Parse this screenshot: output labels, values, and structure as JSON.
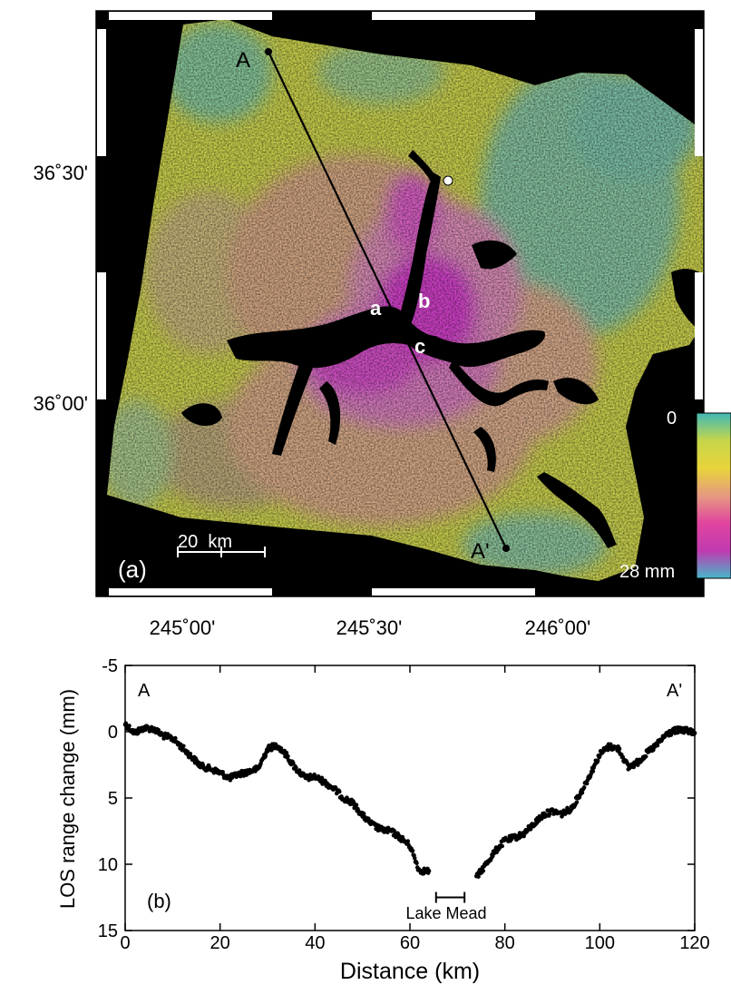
{
  "map": {
    "panel_label": "(a)",
    "lat_ticks": [
      "36˚30'",
      "36˚00'"
    ],
    "lon_ticks": [
      "245˚00'",
      "245˚30'",
      "246˚00'"
    ],
    "profile_start_label": "A",
    "profile_end_label": "A'",
    "site_labels": [
      "a",
      "b",
      "c"
    ],
    "scale_bar_label": "20  km",
    "colorbar": {
      "min_label": "0",
      "max_label": "28 mm",
      "colors": [
        "#3fb9b6",
        "#c6d64a",
        "#e8d43a",
        "#e69a80",
        "#e0449e",
        "#c03ab0",
        "#46b7c9"
      ]
    },
    "colors": {
      "background": "#000000",
      "cyan": "#6fbfae",
      "yellow": "#cdd24a",
      "tan": "#c9a57a",
      "pink": "#dc77c0",
      "magenta": "#d030c4"
    }
  },
  "chart_data": {
    "type": "scatter",
    "panel_label": "(b)",
    "xlabel": "Distance (km)",
    "ylabel": "LOS range change (mm)",
    "xlim": [
      0,
      120
    ],
    "ylim": [
      15,
      -5
    ],
    "y_inverted": true,
    "x_ticks": [
      0,
      20,
      40,
      60,
      80,
      100,
      120
    ],
    "y_ticks": [
      -5,
      0,
      5,
      10,
      15
    ],
    "annotations": [
      {
        "text": "A",
        "x": 2,
        "y": -3.5
      },
      {
        "text": "A'",
        "x": 115,
        "y": -3.5
      },
      {
        "text": "Lake Mead",
        "x": 68.5,
        "y": 14.0
      }
    ],
    "lake_mead_range": [
      65.5,
      71.5
    ],
    "lake_mead_y": 12.5,
    "marker_color": "#000000",
    "profile_x": [
      0,
      2,
      4,
      6,
      8,
      10,
      12,
      14,
      16,
      18,
      20,
      22,
      24,
      26,
      28,
      30,
      32,
      34,
      36,
      38,
      40,
      42,
      44,
      46,
      48,
      50,
      52,
      54,
      56,
      58,
      60,
      62,
      64,
      74,
      76,
      78,
      80,
      82,
      84,
      86,
      88,
      90,
      92,
      94,
      96,
      98,
      100,
      102,
      104,
      106,
      108,
      110,
      112,
      114,
      116,
      118,
      120
    ],
    "profile_y": [
      -0.6,
      0.1,
      -0.3,
      -0.2,
      0.3,
      0.5,
      1.2,
      1.9,
      2.6,
      2.8,
      3.1,
      3.5,
      3.2,
      3.0,
      2.8,
      1.3,
      1.0,
      1.8,
      2.8,
      3.5,
      3.4,
      3.8,
      4.3,
      5.0,
      5.4,
      6.3,
      7.0,
      7.4,
      7.5,
      8.0,
      8.6,
      10.5,
      10.5,
      11.0,
      10.0,
      9.0,
      8.2,
      8.0,
      7.7,
      7.0,
      6.3,
      6.0,
      6.2,
      5.8,
      4.6,
      3.2,
      1.7,
      1.1,
      1.3,
      2.7,
      2.3,
      1.6,
      1.0,
      0.2,
      -0.1,
      -0.1,
      0.1
    ]
  }
}
